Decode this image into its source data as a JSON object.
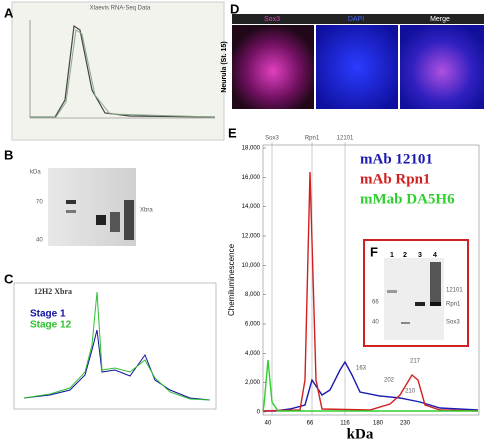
{
  "panels": {
    "a": {
      "letter": "A",
      "title": "Xlaevis RNA-Seq Data"
    },
    "b": {
      "letter": "B",
      "unit": "kDa",
      "band": "Xbra",
      "markers": [
        "70",
        "40"
      ]
    },
    "c": {
      "letter": "C",
      "title": "12H2 Xbra",
      "legend": [
        "Stage 1",
        "Stage 12"
      ]
    },
    "d": {
      "letter": "D",
      "headers": [
        "Sox3",
        "DAPI",
        "Merge"
      ],
      "side": "Neurula (St. 15)"
    },
    "e": {
      "letter": "E",
      "ylabel": "Chemiluminescence",
      "xlabel": "kDa",
      "legend": [
        "mAb 12101",
        "mAb Rpn1",
        "mMab DA5H6"
      ],
      "top_labels": [
        "Sox3",
        "Rpn1",
        "12101"
      ],
      "ylim": [
        0,
        18000
      ],
      "yticks": [
        0,
        {
          "value": 2000,
          "label": "2,000"
        },
        {
          "value": 4000,
          "label": "4,000"
        },
        {
          "value": 6000,
          "label": "6,000"
        },
        {
          "value": 8000,
          "label": "8,000"
        },
        {
          "value": 10000,
          "label": "10,000"
        },
        {
          "value": 12000,
          "label": "12,000"
        },
        {
          "value": 14000,
          "label": "14,000"
        },
        {
          "value": 16000,
          "label": "16,000"
        },
        {
          "value": 18000,
          "label": "18,000"
        }
      ],
      "xlabels": [
        "40",
        "66",
        "116",
        "180",
        "230"
      ],
      "peaks": [
        "163",
        "217",
        "202",
        "210"
      ]
    },
    "f": {
      "letter": "F",
      "lanes": [
        "1",
        "2",
        "3",
        "4"
      ],
      "bands": [
        "12101",
        "Rpn1",
        "Sox3"
      ],
      "markers": [
        "66",
        "40"
      ]
    }
  }
}
